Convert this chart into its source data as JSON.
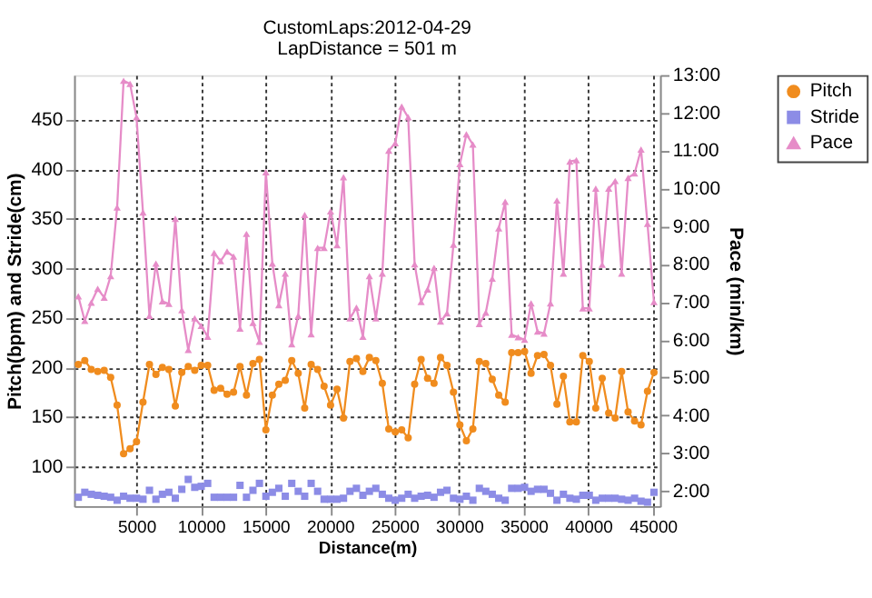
{
  "chart_data": {
    "type": "line",
    "title": "CustomLaps:2012-04-29",
    "subtitle": "LapDistance = 501 m",
    "xlabel": "Distance(m)",
    "ylabel": "Pitch(bpm) and Stride(cm)",
    "y2label": "Pace (min/km)",
    "x": [
      501,
      1002,
      1503,
      2004,
      2505,
      3006,
      3507,
      4008,
      4509,
      5010,
      5511,
      6012,
      6513,
      7014,
      7515,
      8016,
      8517,
      9018,
      9519,
      10020,
      10521,
      11022,
      11523,
      12024,
      12525,
      13026,
      13527,
      14028,
      14529,
      15030,
      15531,
      16032,
      16533,
      17034,
      17535,
      18036,
      18537,
      19038,
      19539,
      20040,
      20541,
      21042,
      21543,
      22044,
      22545,
      23046,
      23547,
      24048,
      24549,
      25050,
      25551,
      26052,
      26553,
      27054,
      27555,
      28056,
      28557,
      29058,
      29559,
      30060,
      30561,
      31062,
      31563,
      32064,
      32565,
      33066,
      33567,
      34068,
      34569,
      35070,
      35571,
      36072,
      36573,
      37074,
      37575,
      38076,
      38577,
      39078,
      39579,
      40080,
      40581,
      41082,
      41583,
      42084,
      42585,
      43086,
      43587,
      44088,
      44589,
      45090
    ],
    "series": [
      {
        "name": "Pitch",
        "color": "#f08c1e",
        "marker": "circle",
        "values": [
          203,
          207,
          198,
          196,
          197,
          190,
          162,
          113,
          118,
          125,
          165,
          203,
          193,
          200,
          198,
          161,
          195,
          201,
          197,
          202,
          202,
          177,
          179,
          173,
          175,
          201,
          172,
          204,
          208,
          137,
          172,
          183,
          187,
          207,
          194,
          159,
          203,
          198,
          181,
          162,
          178,
          149,
          206,
          209,
          196,
          210,
          207,
          184,
          138,
          135,
          137,
          129,
          183,
          208,
          189,
          184,
          210,
          202,
          175,
          142,
          126,
          138,
          206,
          204,
          188,
          172,
          165,
          215,
          215,
          216,
          194,
          212,
          213,
          202,
          163,
          191,
          145,
          145,
          212,
          206,
          159,
          189,
          154,
          149,
          196,
          155,
          146,
          142,
          176,
          195
        ]
      },
      {
        "name": "Stride",
        "color": "#8c8ce6",
        "type": "scatter",
        "marker": "square",
        "values": [
          69,
          74,
          72,
          71,
          70,
          69,
          66,
          70,
          68,
          68,
          67,
          76,
          67,
          72,
          74,
          68,
          77,
          87,
          79,
          80,
          83,
          69,
          69,
          69,
          69,
          81,
          69,
          76,
          83,
          70,
          74,
          78,
          70,
          83,
          75,
          70,
          83,
          75,
          67,
          67,
          67,
          68,
          75,
          78,
          71,
          75,
          78,
          72,
          68,
          66,
          68,
          72,
          68,
          70,
          71,
          69,
          74,
          76,
          68,
          67,
          70,
          66,
          78,
          75,
          72,
          68,
          66,
          78,
          78,
          79,
          75,
          77,
          77,
          73,
          66,
          72,
          68,
          67,
          71,
          71,
          66,
          68,
          68,
          68,
          67,
          66,
          68,
          65,
          64,
          74
        ]
      },
      {
        "name": "Pace",
        "color": "#e68cc8",
        "marker": "triangle",
        "axis": "y2",
        "values": [
          429,
          390,
          419,
          441,
          427,
          461,
          570,
          771,
          766,
          713,
          562,
          398,
          481,
          421,
          417,
          552,
          407,
          344,
          394,
          382,
          365,
          498,
          485,
          500,
          492,
          378,
          528,
          387,
          357,
          626,
          481,
          415,
          465,
          353,
          398,
          558,
          369,
          506,
          506,
          564,
          510,
          618,
          394,
          411,
          365,
          461,
          394,
          465,
          660,
          672,
          730,
          713,
          480,
          420,
          440,
          474,
          389,
          402,
          511,
          639,
          686,
          670,
          385,
          403,
          457,
          537,
          579,
          368,
          364,
          360,
          418,
          373,
          370,
          418,
          581,
          465,
          643,
          645,
          410,
          410,
          600,
          479,
          600,
          612,
          465,
          617,
          624,
          662,
          544,
          420
        ]
      }
    ],
    "xlim": [
      175,
      45560
    ],
    "xticks": [
      5000,
      10000,
      15000,
      20000,
      25000,
      30000,
      35000,
      40000,
      45000
    ],
    "ylim": [
      60,
      495
    ],
    "yticks": [
      100,
      150,
      200,
      250,
      300,
      350,
      400,
      450
    ],
    "y2lim": [
      96,
      780
    ],
    "y2ticks": [
      {
        "value": 120,
        "label": "2:00"
      },
      {
        "value": 180,
        "label": "3:00"
      },
      {
        "value": 240,
        "label": "4:00"
      },
      {
        "value": 300,
        "label": "5:00"
      },
      {
        "value": 360,
        "label": "6:00"
      },
      {
        "value": 420,
        "label": "7:00"
      },
      {
        "value": 480,
        "label": "8:00"
      },
      {
        "value": 540,
        "label": "9:00"
      },
      {
        "value": 600,
        "label": "10:00"
      },
      {
        "value": 660,
        "label": "11:00"
      },
      {
        "value": 720,
        "label": "12:00"
      },
      {
        "value": 780,
        "label": "13:00"
      }
    ],
    "grid": true,
    "legend": "top right",
    "line_style": "solid"
  }
}
